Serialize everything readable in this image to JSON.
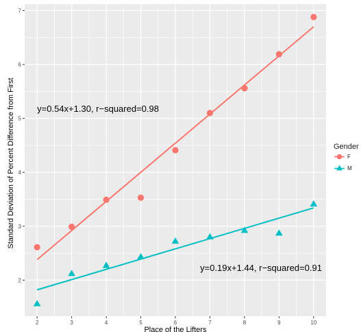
{
  "chart_data": {
    "type": "scatter",
    "xlabel": "Place of the Lifters",
    "ylabel": "Standard Deviation of Percent Difference from First",
    "x_ticks": [
      2,
      3,
      4,
      5,
      6,
      7,
      8,
      9,
      10
    ],
    "y_ticks": [
      2,
      3,
      4,
      5,
      6,
      7
    ],
    "xlim": [
      1.64,
      10.36
    ],
    "ylim": [
      1.33,
      7.12
    ],
    "grid": true,
    "legend": {
      "title": "Gender",
      "position": "right"
    },
    "series": [
      {
        "name": "F",
        "marker": "circle",
        "color": "#F8766D",
        "x": [
          2,
          3,
          4,
          5,
          6,
          7,
          8,
          9,
          10
        ],
        "y": [
          2.61,
          2.99,
          3.49,
          3.53,
          4.41,
          5.1,
          5.56,
          6.19,
          6.88
        ],
        "fit": {
          "slope": 0.54,
          "intercept": 1.3,
          "x_range": [
            2,
            10
          ]
        },
        "annotation": "y=0.54x+1.30, r−squared=0.98"
      },
      {
        "name": "M",
        "marker": "triangle",
        "color": "#00BFC4",
        "x": [
          2,
          3,
          4,
          5,
          6,
          7,
          8,
          9,
          10
        ],
        "y": [
          1.56,
          2.12,
          2.27,
          2.43,
          2.72,
          2.8,
          2.92,
          2.87,
          3.41
        ],
        "fit": {
          "slope": 0.19,
          "intercept": 1.44,
          "x_range": [
            2,
            10
          ]
        },
        "annotation": "y=0.19x+1.44, r−squared=0.91"
      }
    ]
  }
}
